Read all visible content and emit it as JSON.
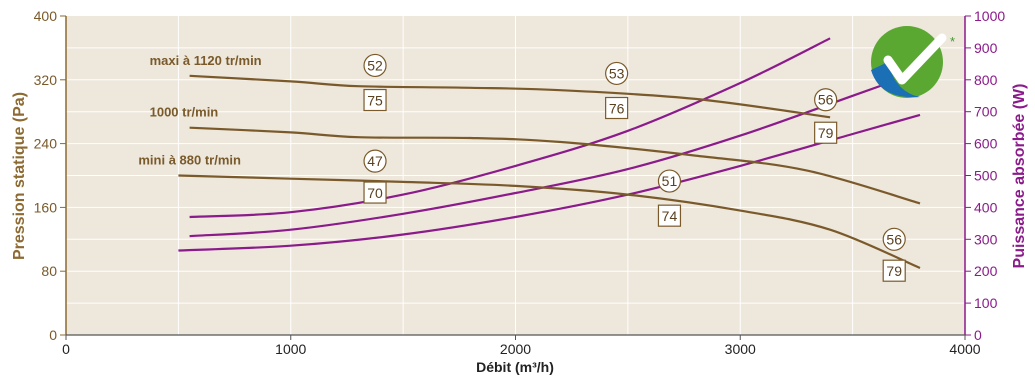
{
  "chart_data": {
    "type": "line",
    "xlabel": "Débit (m³/h)",
    "ylabel_left": "Pression statique (Pa)",
    "ylabel_right": "Puissance absorbée (W)",
    "xlim": [
      0,
      4000
    ],
    "ylim_left": [
      0,
      400
    ],
    "ylim_right": [
      0,
      1000
    ],
    "x_ticks": [
      "0",
      "1000",
      "2000",
      "3000",
      "4000"
    ],
    "y_ticks_left": [
      "0",
      "80",
      "160",
      "240",
      "320",
      "400"
    ],
    "y_ticks_right": [
      "0",
      "100",
      "200",
      "300",
      "400",
      "500",
      "600",
      "700",
      "800",
      "900",
      "1000"
    ],
    "grid": true,
    "colors": {
      "plot_bg": "#ede7dc",
      "grid": "#ffffff",
      "pressure": "#7a5a2b",
      "power": "#8b1a8b",
      "badge_border": "#7a5a2b"
    },
    "pressure_series": [
      {
        "label": "maxi à 1120 tr/min",
        "points": [
          [
            550,
            325
          ],
          [
            1000,
            318
          ],
          [
            1300,
            312
          ],
          [
            1800,
            310
          ],
          [
            2200,
            307
          ],
          [
            2800,
            296
          ],
          [
            3400,
            273
          ]
        ]
      },
      {
        "label": "1000 tr/min",
        "points": [
          [
            550,
            260
          ],
          [
            1000,
            254
          ],
          [
            1300,
            248
          ],
          [
            1800,
            247
          ],
          [
            2200,
            242
          ],
          [
            2800,
            225
          ],
          [
            3300,
            206
          ],
          [
            3800,
            165
          ]
        ]
      },
      {
        "label": "mini à 880 tr/min",
        "points": [
          [
            500,
            200
          ],
          [
            1000,
            196
          ],
          [
            1500,
            192
          ],
          [
            2000,
            187
          ],
          [
            2500,
            176
          ],
          [
            3000,
            156
          ],
          [
            3400,
            132
          ],
          [
            3800,
            84
          ]
        ]
      }
    ],
    "power_series": [
      {
        "points": [
          [
            550,
            370
          ],
          [
            1000,
            385
          ],
          [
            1500,
            440
          ],
          [
            2000,
            530
          ],
          [
            2500,
            640
          ],
          [
            3000,
            790
          ],
          [
            3400,
            930
          ]
        ]
      },
      {
        "points": [
          [
            550,
            310
          ],
          [
            1000,
            330
          ],
          [
            1500,
            380
          ],
          [
            2000,
            445
          ],
          [
            2500,
            520
          ],
          [
            3000,
            625
          ],
          [
            3500,
            750
          ],
          [
            3700,
            800
          ]
        ]
      },
      {
        "points": [
          [
            500,
            265
          ],
          [
            1000,
            280
          ],
          [
            1500,
            315
          ],
          [
            2000,
            370
          ],
          [
            2500,
            440
          ],
          [
            3000,
            530
          ],
          [
            3500,
            630
          ],
          [
            3800,
            690
          ]
        ]
      }
    ],
    "noise_circles": [
      {
        "value": "52",
        "x": 1375,
        "y": 338
      },
      {
        "value": "53",
        "x": 2450,
        "y": 328
      },
      {
        "value": "56",
        "x": 3380,
        "y": 295
      },
      {
        "value": "47",
        "x": 1375,
        "y": 218
      },
      {
        "value": "51",
        "x": 2685,
        "y": 193
      },
      {
        "value": "56",
        "x": 3685,
        "y": 120
      }
    ],
    "power_boxes": [
      {
        "value": "75",
        "x": 1375,
        "y": 294
      },
      {
        "value": "76",
        "x": 2450,
        "y": 284
      },
      {
        "value": "79",
        "x": 3380,
        "y": 253
      },
      {
        "value": "70",
        "x": 1375,
        "y": 178
      },
      {
        "value": "74",
        "x": 2685,
        "y": 149
      },
      {
        "value": "79",
        "x": 3685,
        "y": 80
      }
    ],
    "logo_mark": "*"
  }
}
